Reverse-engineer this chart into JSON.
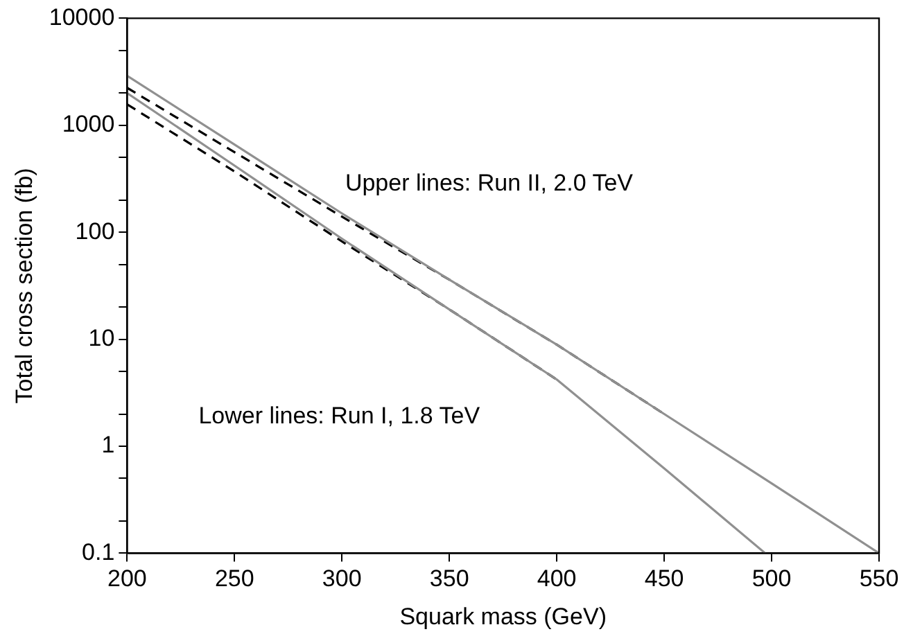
{
  "chart_data": {
    "type": "line",
    "xlabel": "Squark mass (GeV)",
    "ylabel": "Total cross section (fb)",
    "log": "y",
    "grid": false,
    "legend": false,
    "marker": "none",
    "xlim": [
      200,
      550
    ],
    "xticks": [
      200,
      250,
      300,
      350,
      400,
      450,
      500,
      550
    ],
    "ylim": [
      0.1,
      10000
    ],
    "yticks": [
      0.1,
      {
        "value": 0.2,
        "label": null
      },
      {
        "value": 0.5,
        "label": null
      },
      1,
      {
        "value": 2,
        "label": null
      },
      {
        "value": 5,
        "label": null
      },
      10,
      {
        "value": 20,
        "label": null
      },
      {
        "value": 50,
        "label": null
      },
      100,
      {
        "value": 200,
        "label": null
      },
      {
        "value": 500,
        "label": null
      },
      1000,
      {
        "value": 2000,
        "label": null
      },
      {
        "value": 5000,
        "label": null
      },
      10000
    ],
    "annotations": [
      "Upper lines: Run II, 2.0 TeV",
      "Lower lines: Run I, 1.8 TeV"
    ],
    "series": [
      {
        "color": "#909090",
        "line_style": "solid",
        "x": [
          200,
          250,
          300,
          350,
          400,
          450,
          500,
          550
        ],
        "values": [
          2900,
          660,
          150,
          36,
          8.9,
          2,
          0.45,
          0.1
        ]
      },
      {
        "color": "#000000",
        "line_style": "dashed",
        "x": [
          200,
          250,
          300,
          350,
          400,
          450
        ],
        "values": [
          2240,
          560,
          140,
          36,
          8.9,
          2
        ]
      },
      {
        "color": "#909090",
        "line_style": "solid",
        "x": [
          200,
          250,
          300,
          350,
          400,
          450,
          497
        ],
        "values": [
          2000,
          420,
          87,
          19,
          4.2,
          0.62,
          0.1
        ]
      },
      {
        "color": "#000000",
        "line_style": "dashed",
        "x": [
          200,
          250,
          300,
          350,
          400
        ],
        "values": [
          1570,
          370,
          82,
          19,
          4.2
        ]
      }
    ]
  }
}
